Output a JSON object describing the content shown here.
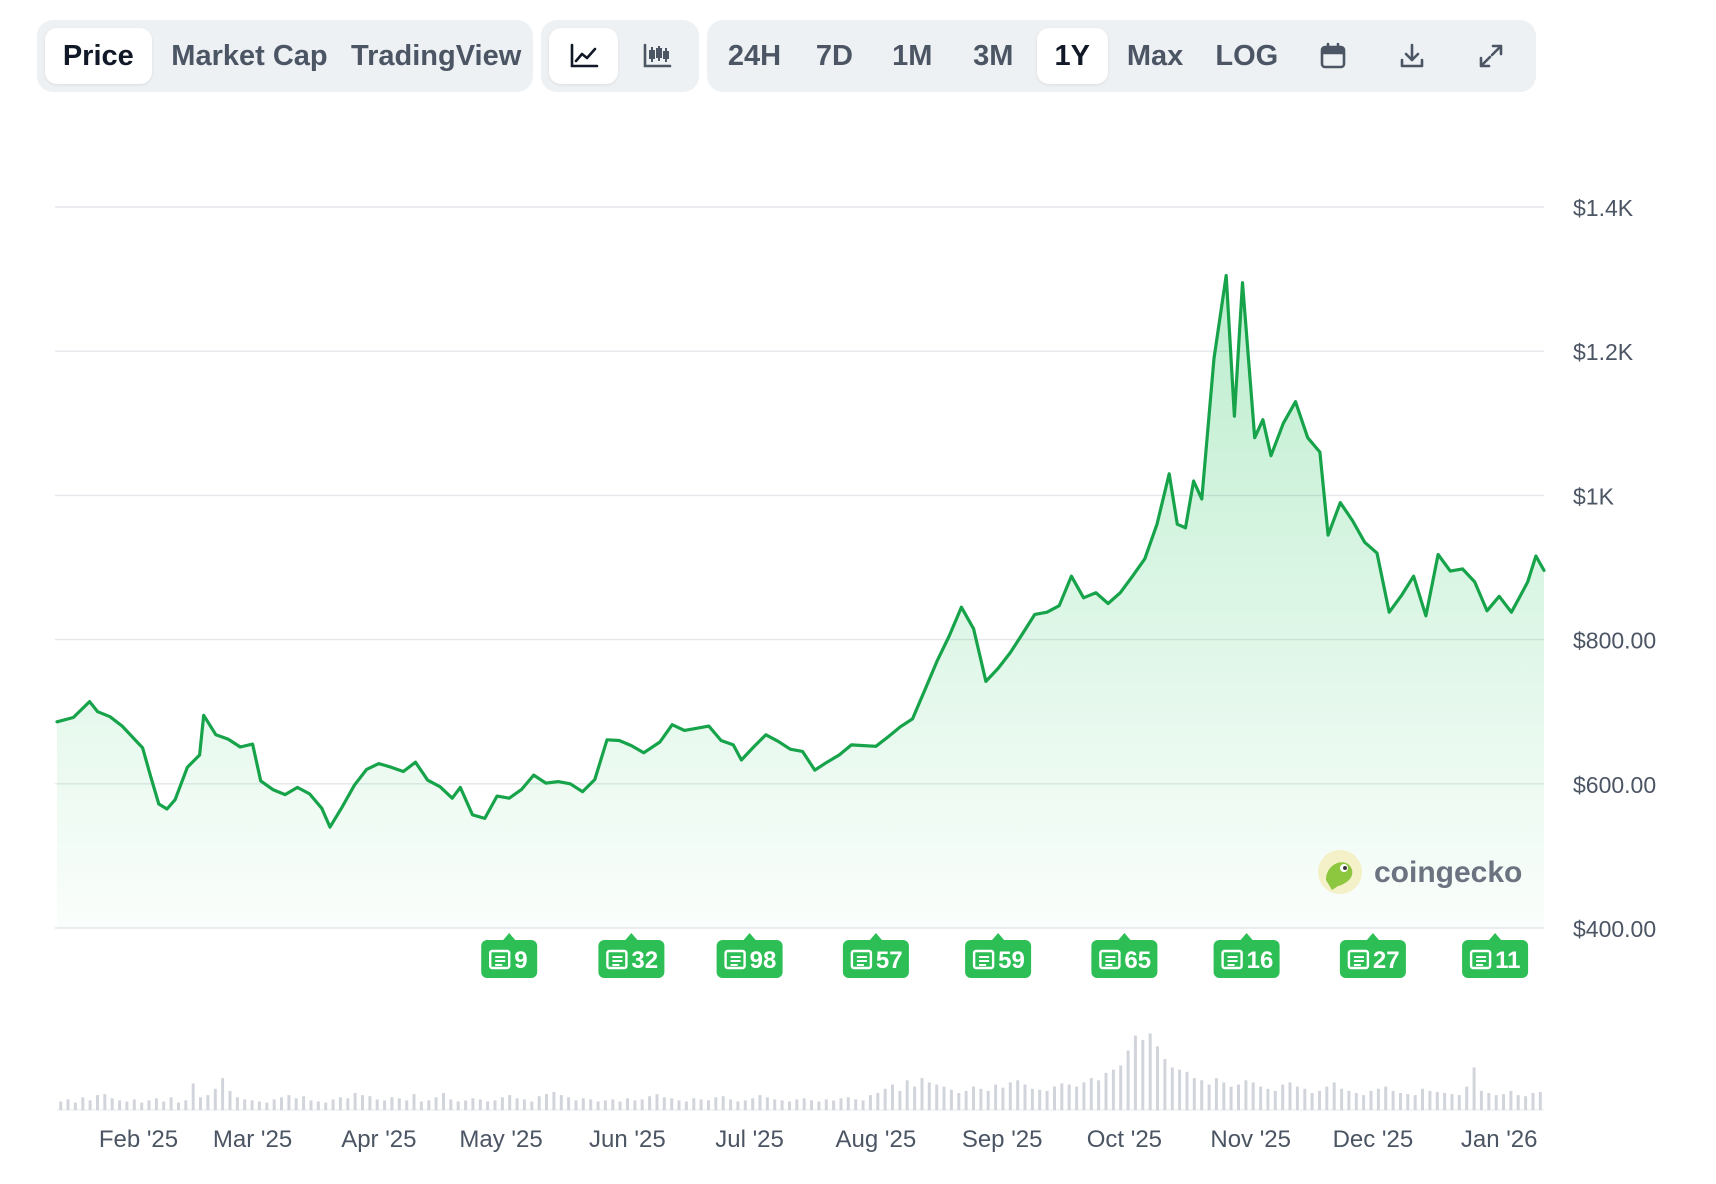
{
  "toolbar": {
    "view_tabs": [
      {
        "label": "Price",
        "active": true
      },
      {
        "label": "Market Cap",
        "active": false
      },
      {
        "label": "TradingView",
        "active": false
      }
    ],
    "chart_types": [
      {
        "icon": "line-chart-icon",
        "active": true
      },
      {
        "icon": "candlestick-icon",
        "active": false
      }
    ],
    "ranges": [
      {
        "label": "24H",
        "active": false
      },
      {
        "label": "7D",
        "active": false
      },
      {
        "label": "1M",
        "active": false
      },
      {
        "label": "3M",
        "active": false
      },
      {
        "label": "1Y",
        "active": true
      },
      {
        "label": "Max",
        "active": false
      },
      {
        "label": "LOG",
        "active": false
      }
    ],
    "actions": [
      {
        "icon": "calendar-icon"
      },
      {
        "icon": "download-icon"
      },
      {
        "icon": "expand-icon"
      }
    ]
  },
  "watermark": {
    "text": "coingecko",
    "icon": "coingecko-logo-icon"
  },
  "colors": {
    "line": "#16a34a",
    "fill": "#22c55e",
    "badge": "#2dbe55",
    "volume": "#d1d5db"
  },
  "chart_data": {
    "type": "area",
    "series_name": "Price",
    "y_axis": {
      "min": 400,
      "max": 1400,
      "ticks": [
        "$1.4K",
        "$1.2K",
        "$1K",
        "$800.00",
        "$600.00",
        "$400.00"
      ],
      "tick_values": [
        1400,
        1200,
        1000,
        800,
        600,
        400
      ],
      "position": "right"
    },
    "x_axis": {
      "start": "2025-01-12",
      "end": "2026-01-12",
      "ticks": [
        "Feb '25",
        "Mar '25",
        "Apr '25",
        "May '25",
        "Jun '25",
        "Jul '25",
        "Aug '25",
        "Sep '25",
        "Oct '25",
        "Nov '25",
        "Dec '25",
        "Jan '26"
      ],
      "tick_dates": [
        "2025-02-01",
        "2025-03-01",
        "2025-04-01",
        "2025-05-01",
        "2025-06-01",
        "2025-07-01",
        "2025-08-01",
        "2025-09-01",
        "2025-10-01",
        "2025-11-01",
        "2025-12-01",
        "2026-01-01"
      ]
    },
    "grid": true,
    "points": [
      [
        "2025-01-12",
        686
      ],
      [
        "2025-01-16",
        692
      ],
      [
        "2025-01-20",
        714
      ],
      [
        "2025-01-22",
        700
      ],
      [
        "2025-01-25",
        693
      ],
      [
        "2025-01-28",
        680
      ],
      [
        "2025-01-31",
        662
      ],
      [
        "2025-02-02",
        650
      ],
      [
        "2025-02-04",
        610
      ],
      [
        "2025-02-06",
        572
      ],
      [
        "2025-02-08",
        565
      ],
      [
        "2025-02-10",
        578
      ],
      [
        "2025-02-13",
        623
      ],
      [
        "2025-02-16",
        640
      ],
      [
        "2025-02-17",
        695
      ],
      [
        "2025-02-20",
        668
      ],
      [
        "2025-02-23",
        662
      ],
      [
        "2025-02-26",
        651
      ],
      [
        "2025-03-01",
        655
      ],
      [
        "2025-03-03",
        604
      ],
      [
        "2025-03-06",
        592
      ],
      [
        "2025-03-09",
        585
      ],
      [
        "2025-03-12",
        595
      ],
      [
        "2025-03-15",
        586
      ],
      [
        "2025-03-18",
        566
      ],
      [
        "2025-03-20",
        540
      ],
      [
        "2025-03-23",
        568
      ],
      [
        "2025-03-26",
        598
      ],
      [
        "2025-03-29",
        620
      ],
      [
        "2025-04-01",
        628
      ],
      [
        "2025-04-04",
        623
      ],
      [
        "2025-04-07",
        617
      ],
      [
        "2025-04-10",
        630
      ],
      [
        "2025-04-13",
        605
      ],
      [
        "2025-04-16",
        596
      ],
      [
        "2025-04-19",
        580
      ],
      [
        "2025-04-21",
        595
      ],
      [
        "2025-04-24",
        557
      ],
      [
        "2025-04-27",
        552
      ],
      [
        "2025-04-30",
        583
      ],
      [
        "2025-05-03",
        580
      ],
      [
        "2025-05-06",
        592
      ],
      [
        "2025-05-09",
        612
      ],
      [
        "2025-05-12",
        601
      ],
      [
        "2025-05-15",
        603
      ],
      [
        "2025-05-18",
        600
      ],
      [
        "2025-05-21",
        589
      ],
      [
        "2025-05-24",
        606
      ],
      [
        "2025-05-27",
        661
      ],
      [
        "2025-05-30",
        660
      ],
      [
        "2025-06-02",
        653
      ],
      [
        "2025-06-05",
        643
      ],
      [
        "2025-06-09",
        658
      ],
      [
        "2025-06-12",
        682
      ],
      [
        "2025-06-15",
        674
      ],
      [
        "2025-06-18",
        677
      ],
      [
        "2025-06-21",
        680
      ],
      [
        "2025-06-24",
        660
      ],
      [
        "2025-06-27",
        654
      ],
      [
        "2025-06-29",
        633
      ],
      [
        "2025-07-02",
        651
      ],
      [
        "2025-07-05",
        668
      ],
      [
        "2025-07-08",
        659
      ],
      [
        "2025-07-11",
        648
      ],
      [
        "2025-07-14",
        645
      ],
      [
        "2025-07-17",
        619
      ],
      [
        "2025-07-20",
        630
      ],
      [
        "2025-07-23",
        640
      ],
      [
        "2025-07-26",
        654
      ],
      [
        "2025-07-29",
        653
      ],
      [
        "2025-08-01",
        652
      ],
      [
        "2025-08-04",
        665
      ],
      [
        "2025-08-07",
        679
      ],
      [
        "2025-08-10",
        690
      ],
      [
        "2025-08-13",
        730
      ],
      [
        "2025-08-16",
        770
      ],
      [
        "2025-08-19",
        805
      ],
      [
        "2025-08-22",
        845
      ],
      [
        "2025-08-25",
        815
      ],
      [
        "2025-08-28",
        742
      ],
      [
        "2025-08-31",
        760
      ],
      [
        "2025-09-03",
        782
      ],
      [
        "2025-09-06",
        808
      ],
      [
        "2025-09-09",
        835
      ],
      [
        "2025-09-12",
        838
      ],
      [
        "2025-09-15",
        847
      ],
      [
        "2025-09-18",
        888
      ],
      [
        "2025-09-21",
        858
      ],
      [
        "2025-09-24",
        865
      ],
      [
        "2025-09-27",
        850
      ],
      [
        "2025-09-30",
        865
      ],
      [
        "2025-10-03",
        888
      ],
      [
        "2025-10-06",
        912
      ],
      [
        "2025-10-09",
        960
      ],
      [
        "2025-10-12",
        1030
      ],
      [
        "2025-10-14",
        960
      ],
      [
        "2025-10-16",
        955
      ],
      [
        "2025-10-18",
        1020
      ],
      [
        "2025-10-20",
        995
      ],
      [
        "2025-10-23",
        1190
      ],
      [
        "2025-10-26",
        1305
      ],
      [
        "2025-10-28",
        1110
      ],
      [
        "2025-10-30",
        1295
      ],
      [
        "2025-11-02",
        1080
      ],
      [
        "2025-11-04",
        1105
      ],
      [
        "2025-11-06",
        1055
      ],
      [
        "2025-11-09",
        1100
      ],
      [
        "2025-11-12",
        1130
      ],
      [
        "2025-11-15",
        1080
      ],
      [
        "2025-11-18",
        1060
      ],
      [
        "2025-11-20",
        945
      ],
      [
        "2025-11-23",
        990
      ],
      [
        "2025-11-26",
        965
      ],
      [
        "2025-11-29",
        935
      ],
      [
        "2025-12-02",
        920
      ],
      [
        "2025-12-05",
        838
      ],
      [
        "2025-12-08",
        861
      ],
      [
        "2025-12-11",
        888
      ],
      [
        "2025-12-14",
        833
      ],
      [
        "2025-12-17",
        918
      ],
      [
        "2025-12-20",
        895
      ],
      [
        "2025-12-23",
        898
      ],
      [
        "2025-12-26",
        880
      ],
      [
        "2025-12-29",
        840
      ],
      [
        "2026-01-01",
        860
      ],
      [
        "2026-01-04",
        838
      ],
      [
        "2026-01-06",
        859
      ],
      [
        "2026-01-08",
        880
      ],
      [
        "2026-01-10",
        916
      ],
      [
        "2026-01-12",
        896
      ]
    ],
    "news_markers": [
      {
        "count": "9",
        "date": "2025-05-03"
      },
      {
        "count": "32",
        "date": "2025-06-02"
      },
      {
        "count": "98",
        "date": "2025-07-01"
      },
      {
        "count": "57",
        "date": "2025-08-01"
      },
      {
        "count": "59",
        "date": "2025-08-31"
      },
      {
        "count": "65",
        "date": "2025-10-01"
      },
      {
        "count": "16",
        "date": "2025-10-31"
      },
      {
        "count": "27",
        "date": "2025-12-01"
      },
      {
        "count": "11",
        "date": "2025-12-31"
      }
    ],
    "volume_bars": [
      8,
      10,
      7,
      12,
      9,
      14,
      15,
      11,
      9,
      8,
      10,
      7,
      9,
      11,
      8,
      12,
      7,
      9,
      25,
      12,
      14,
      20,
      30,
      18,
      12,
      10,
      9,
      8,
      7,
      10,
      12,
      14,
      11,
      13,
      9,
      8,
      7,
      10,
      12,
      11,
      16,
      14,
      13,
      10,
      9,
      12,
      11,
      9,
      15,
      8,
      9,
      12,
      16,
      10,
      8,
      9,
      11,
      10,
      8,
      9,
      12,
      14,
      11,
      10,
      8,
      13,
      15,
      17,
      14,
      12,
      9,
      11,
      10,
      8,
      9,
      10,
      8,
      11,
      9,
      10,
      13,
      15,
      12,
      11,
      9,
      8,
      11,
      10,
      9,
      12,
      13,
      10,
      8,
      9,
      11,
      14,
      12,
      10,
      9,
      8,
      10,
      11,
      9,
      8,
      10,
      9,
      11,
      12,
      10,
      9,
      14,
      16,
      20,
      24,
      18,
      28,
      22,
      30,
      26,
      24,
      22,
      19,
      16,
      18,
      22,
      20,
      18,
      24,
      21,
      26,
      28,
      24,
      20,
      19,
      18,
      22,
      25,
      24,
      22,
      26,
      30,
      28,
      35,
      38,
      42,
      56,
      70,
      66,
      72,
      60,
      48,
      40,
      38,
      36,
      30,
      28,
      24,
      30,
      26,
      22,
      24,
      28,
      26,
      22,
      20,
      18,
      24,
      26,
      22,
      20,
      16,
      18,
      22,
      26,
      20,
      18,
      16,
      14,
      18,
      20,
      22,
      18,
      16,
      15,
      14,
      20,
      18,
      17,
      16,
      15,
      14,
      22,
      40,
      18,
      16,
      14,
      15,
      18,
      14,
      13,
      16,
      17
    ]
  }
}
